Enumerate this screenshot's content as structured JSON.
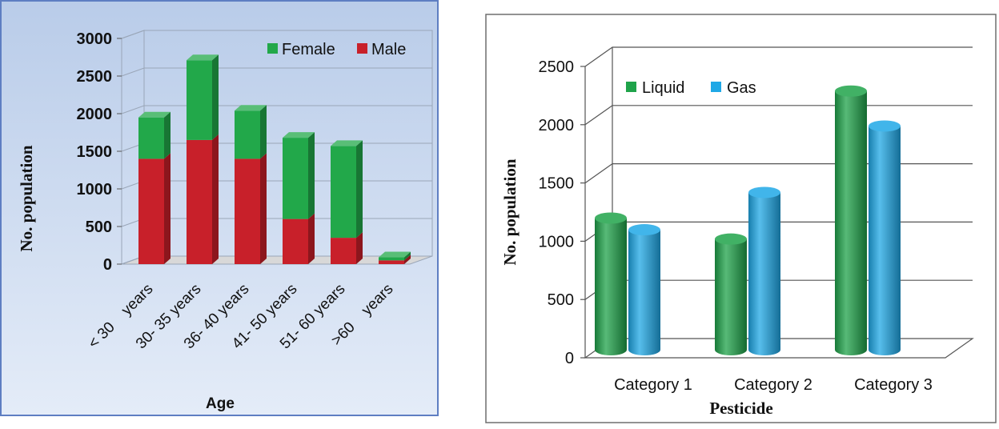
{
  "chart_data": [
    {
      "type": "bar",
      "stacked": true,
      "three_d": true,
      "categories": [
        "< 30    years",
        "30- 35 years",
        "36- 40 years",
        "41- 50 years",
        "51- 60 years",
        ">60    years"
      ],
      "series": [
        {
          "name": "Male",
          "color": "#c8202a",
          "values": [
            1400,
            1650,
            1400,
            600,
            350,
            50
          ]
        },
        {
          "name": "Female",
          "color": "#22a84a",
          "values": [
            550,
            1060,
            640,
            1080,
            1220,
            40
          ]
        }
      ],
      "xlabel": "Age",
      "ylabel": "No. population",
      "ylim": [
        0,
        3000
      ],
      "yticks": [
        0,
        500,
        1000,
        1500,
        2000,
        2500,
        3000
      ],
      "legend": {
        "placement": "top-right",
        "entries": [
          "Female",
          "Male"
        ]
      },
      "background": "#cfdcf0",
      "border": "#5e7ec2"
    },
    {
      "type": "bar",
      "three_d": true,
      "shape": "cylinder",
      "categories": [
        "Category 1",
        "Category 2",
        "Category 3"
      ],
      "series": [
        {
          "name": "Liquid",
          "color": "#1fa34a",
          "values": [
            1130,
            950,
            2220
          ]
        },
        {
          "name": "Gas",
          "color": "#1fa8e6",
          "values": [
            1030,
            1350,
            1920
          ]
        }
      ],
      "xlabel": "Pesticide",
      "ylabel": "No. population",
      "ylim": [
        0,
        2500
      ],
      "yticks": [
        0,
        500,
        1000,
        1500,
        2000,
        2500
      ],
      "legend": {
        "placement": "top-left",
        "entries": [
          "Liquid",
          "Gas"
        ]
      },
      "grid": true
    }
  ]
}
